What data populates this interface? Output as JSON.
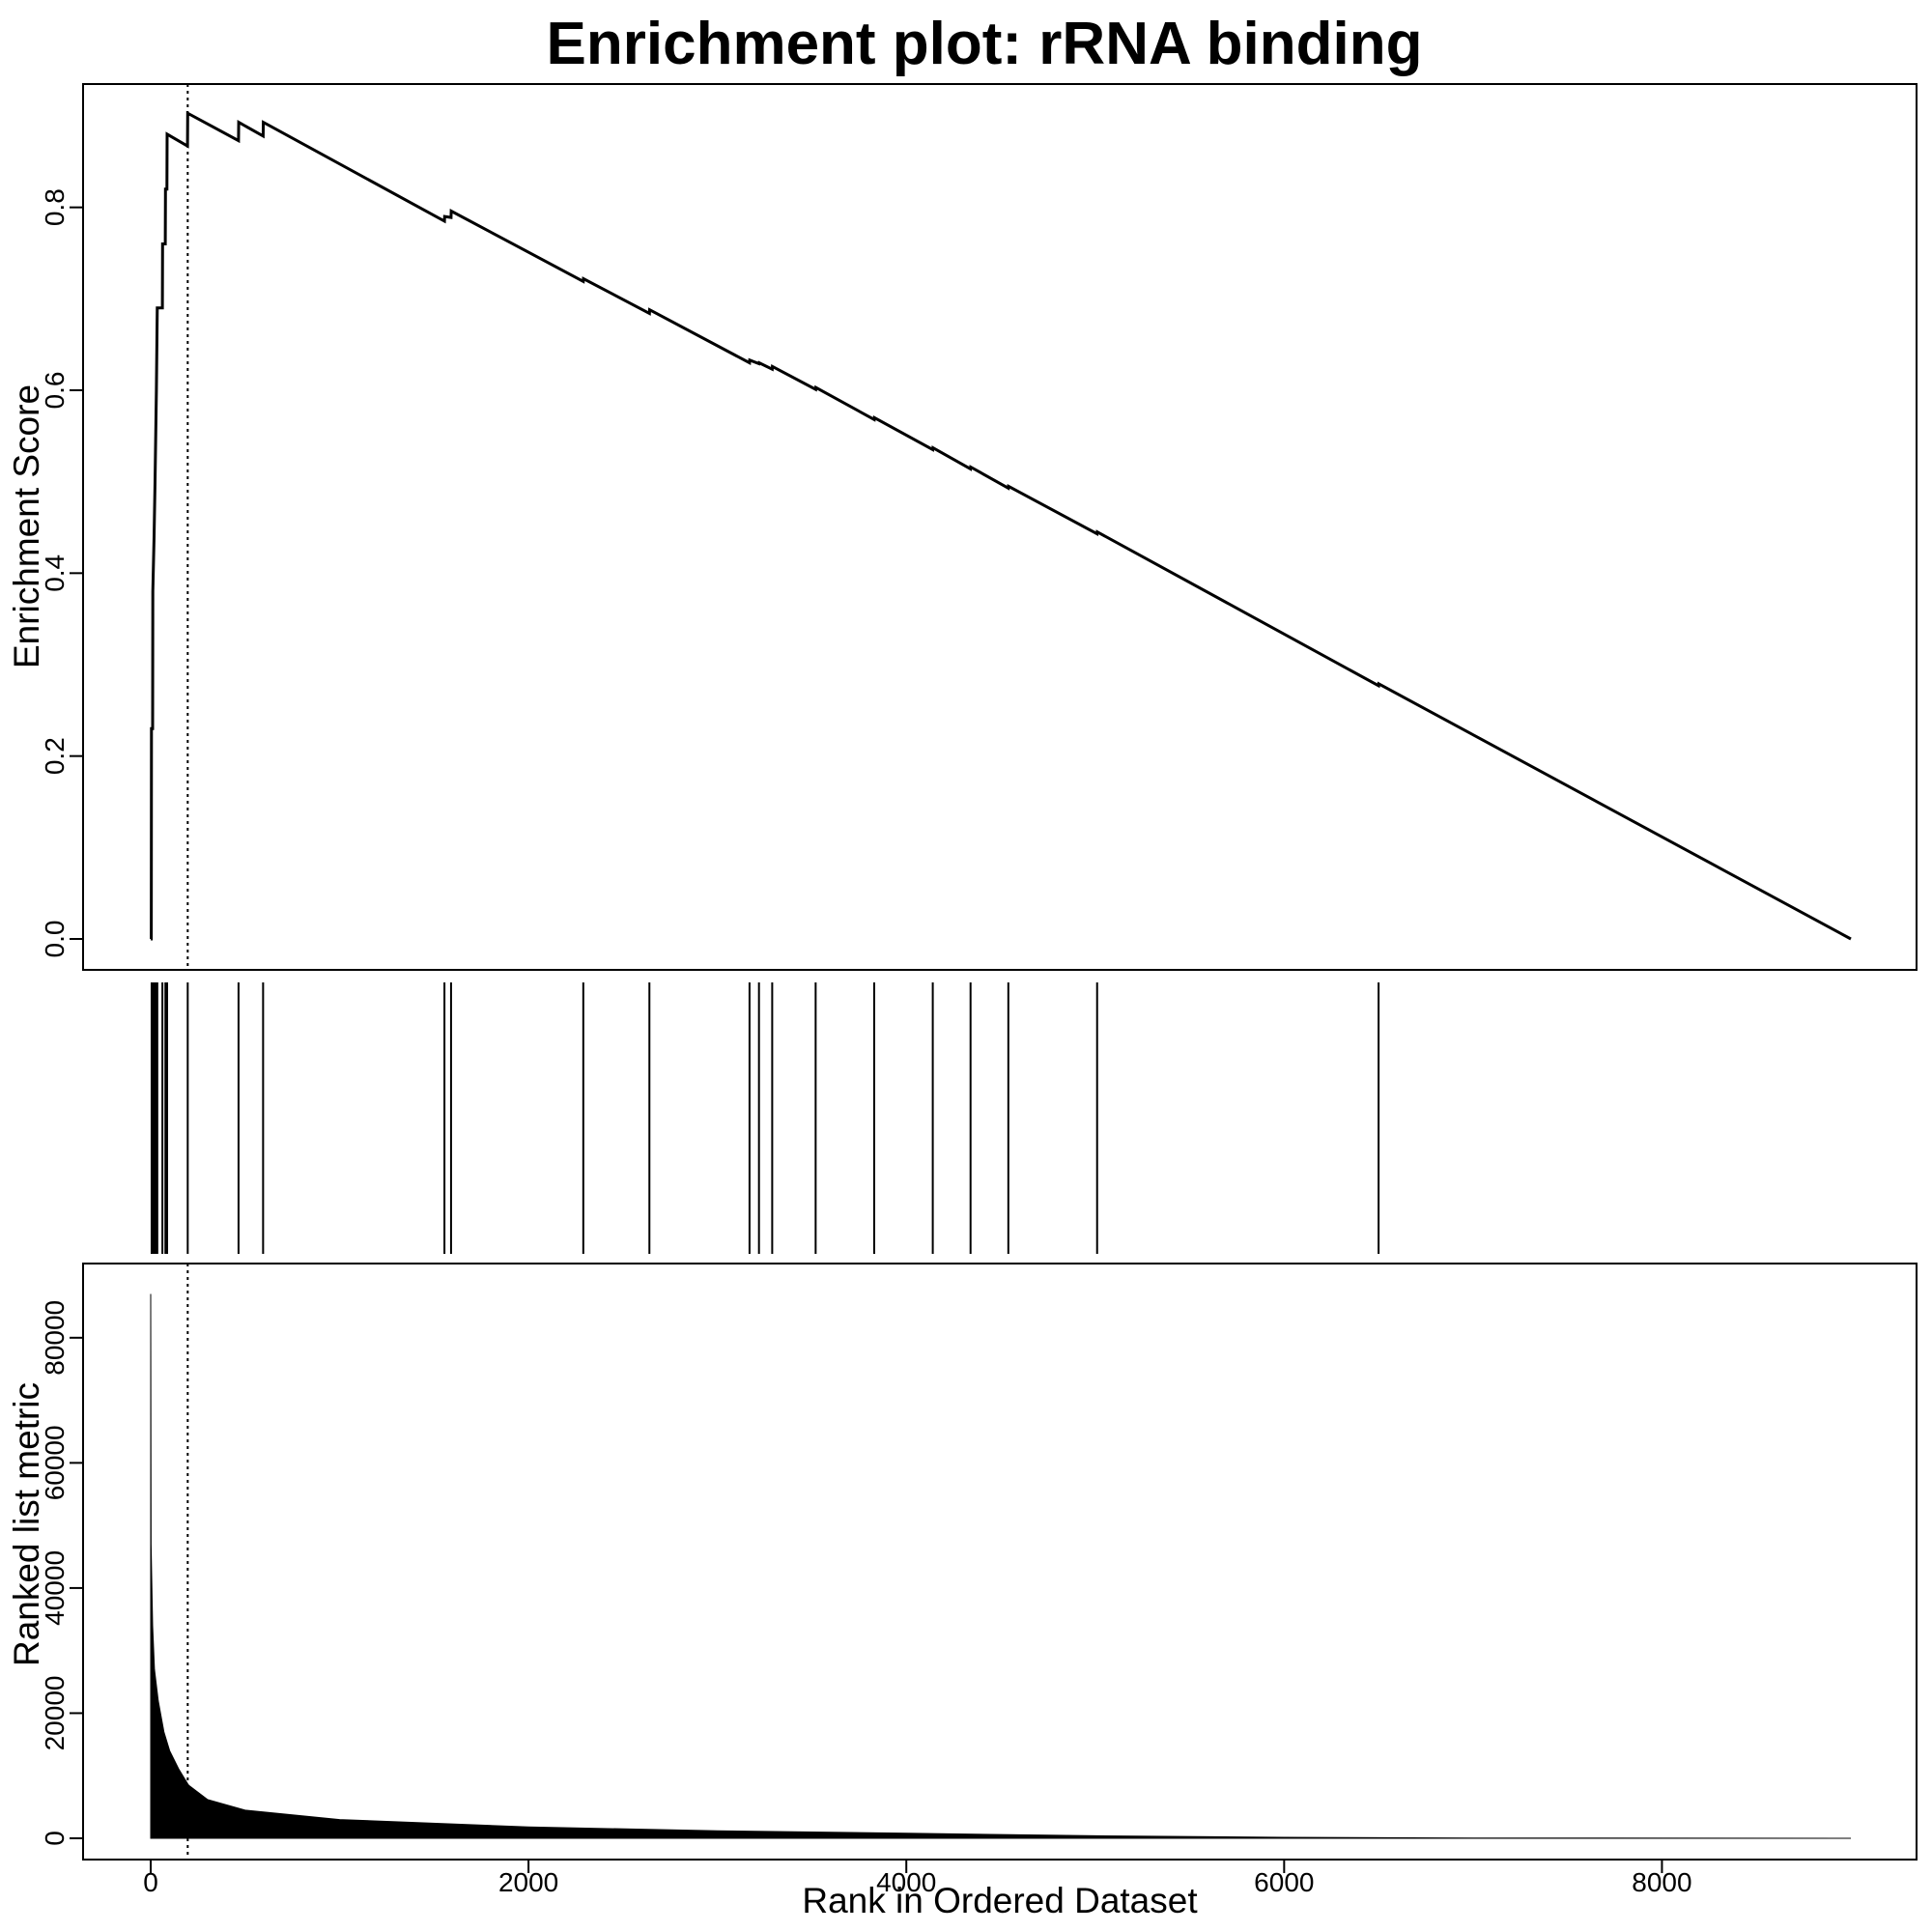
{
  "chart_data": {
    "type": "line",
    "title": "Enrichment plot: rRNA binding",
    "xlabel": "Rank in Ordered Dataset",
    "xlim": [
      0,
      9000
    ],
    "x_ticks": [
      "0",
      "2000",
      "4000",
      "6000",
      "8000"
    ],
    "grid": false,
    "panels": [
      {
        "name": "enrichment",
        "ylabel": "Enrichment Score",
        "ylim": [
          0,
          0.9
        ],
        "y_ticks": [
          "0.0",
          "0.2",
          "0.4",
          "0.6",
          "0.8"
        ],
        "series": [
          {
            "points": [
              [
                0,
                0.0
              ],
              [
                3,
                0.0
              ],
              [
                4,
                0.23
              ],
              [
                10,
                0.23
              ],
              [
                11,
                0.38
              ],
              [
                18,
                0.44
              ],
              [
                23,
                0.5
              ],
              [
                30,
                0.6
              ],
              [
                35,
                0.69
              ],
              [
                62,
                0.69
              ],
              [
                63,
                0.76
              ],
              [
                77,
                0.76
              ],
              [
                78,
                0.82
              ],
              [
                86,
                0.82
              ],
              [
                87,
                0.88
              ],
              [
                195,
                0.867
              ],
              [
                196,
                0.903
              ],
              [
                465,
                0.873
              ],
              [
                466,
                0.893
              ],
              [
                595,
                0.878
              ],
              [
                596,
                0.893
              ],
              [
                1555,
                0.785
              ],
              [
                1556,
                0.79
              ],
              [
                1590,
                0.789
              ],
              [
                1591,
                0.796
              ],
              [
                2290,
                0.719
              ],
              [
                2291,
                0.722
              ],
              [
                2640,
                0.684
              ],
              [
                2641,
                0.688
              ],
              [
                3170,
                0.63
              ],
              [
                3171,
                0.633
              ],
              [
                3220,
                0.629
              ],
              [
                3221,
                0.63
              ],
              [
                3290,
                0.623
              ],
              [
                3291,
                0.626
              ],
              [
                3520,
                0.601
              ],
              [
                3521,
                0.603
              ],
              [
                3830,
                0.568
              ],
              [
                3831,
                0.57
              ],
              [
                4140,
                0.535
              ],
              [
                4141,
                0.537
              ],
              [
                4340,
                0.514
              ],
              [
                4341,
                0.516
              ],
              [
                4540,
                0.493
              ],
              [
                4541,
                0.495
              ],
              [
                5010,
                0.443
              ],
              [
                5011,
                0.445
              ],
              [
                6500,
                0.277
              ],
              [
                6501,
                0.279
              ],
              [
                9000,
                0.0
              ]
            ]
          }
        ],
        "vline": 196
      },
      {
        "name": "hits",
        "positions": [
          5,
          12,
          18,
          25,
          30,
          35,
          62,
          78,
          87,
          196,
          465,
          595,
          1555,
          1590,
          2290,
          2640,
          3170,
          3220,
          3290,
          3520,
          3830,
          4140,
          4340,
          4540,
          5010,
          6500
        ]
      },
      {
        "name": "ranked_metric",
        "ylabel": "Ranked list metric",
        "ylim": [
          0,
          88000
        ],
        "y_ticks": [
          "0",
          "20000",
          "40000",
          "60000",
          "80000"
        ],
        "series": [
          {
            "points": [
              [
                0,
                87000
              ],
              [
                2,
                47000
              ],
              [
                5,
                42000
              ],
              [
                10,
                34000
              ],
              [
                20,
                27000
              ],
              [
                40,
                22000
              ],
              [
                70,
                17000
              ],
              [
                100,
                14000
              ],
              [
                150,
                11000
              ],
              [
                200,
                8500
              ],
              [
                300,
                6200
              ],
              [
                500,
                4500
              ],
              [
                1000,
                3000
              ],
              [
                2000,
                1800
              ],
              [
                3000,
                1200
              ],
              [
                4000,
                800
              ],
              [
                5000,
                400
              ],
              [
                6000,
                150
              ],
              [
                7000,
                50
              ],
              [
                9000,
                0
              ]
            ]
          }
        ],
        "vline": 196
      }
    ]
  }
}
